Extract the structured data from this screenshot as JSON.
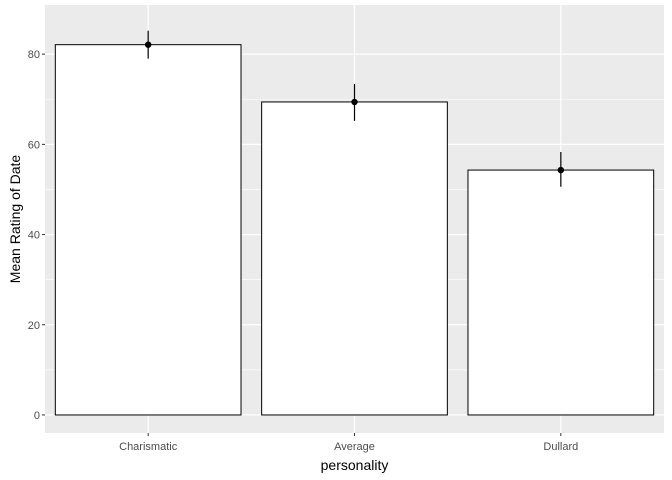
{
  "chart_data": {
    "type": "bar",
    "title": "",
    "xlabel": "personality",
    "ylabel": "Mean Rating of Date",
    "categories": [
      "Charismatic",
      "Average",
      "Dullard"
    ],
    "values": [
      82.1,
      69.4,
      54.3
    ],
    "error_bars": {
      "lower": [
        79.0,
        65.2,
        50.6
      ],
      "upper": [
        85.2,
        73.4,
        58.3
      ]
    },
    "ylim": [
      -4,
      90.9
    ],
    "yticks": [
      0,
      20,
      40,
      60,
      80
    ],
    "grid": true,
    "legend": "none",
    "colors": {
      "panel": "#EBEBEB",
      "grid_major": "#FFFFFF",
      "bar_fill": "#FFFFFF",
      "bar_stroke": "#000000",
      "errorbar": "#000000",
      "tick_text": "#4D4D4D"
    }
  }
}
